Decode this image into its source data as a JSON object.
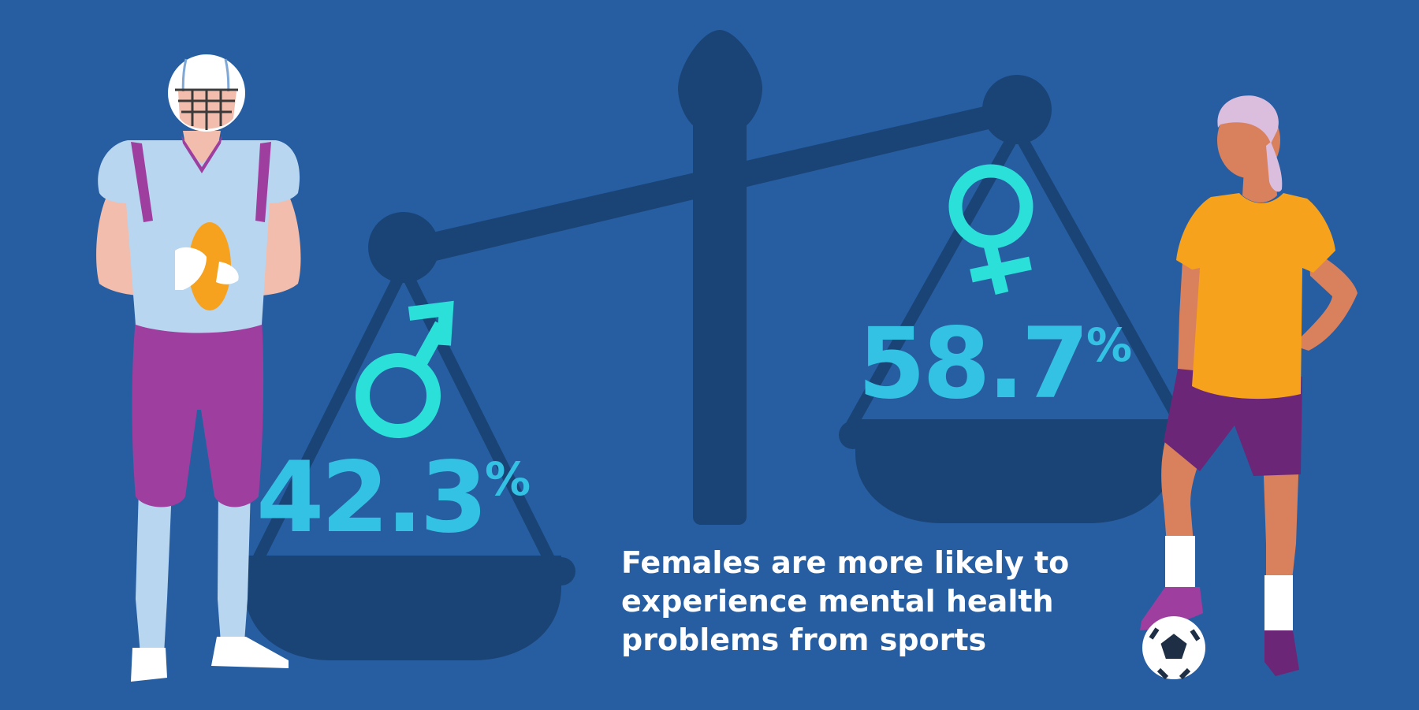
{
  "male": {
    "percentage": "42.3",
    "percent_sign": "%",
    "symbol": "male-symbol-icon"
  },
  "female": {
    "percentage": "58.7",
    "percent_sign": "%",
    "symbol": "female-symbol-icon"
  },
  "caption": {
    "lines": [
      "Females are more likely to",
      "experience mental health",
      "problems from sports"
    ]
  },
  "colors": {
    "background": "#275ea2",
    "scale": "#1a4476",
    "stat": "#33c2e4",
    "gender_symbol": "#2ce0da",
    "caption": "#ffffff",
    "football_jersey": "#b8d6ef",
    "football_pants": "#9e3fa0",
    "football": "#f6a21f",
    "soccer_shirt": "#f7a21d",
    "soccer_shorts": "#6c2678",
    "skin": "#d9805c"
  }
}
